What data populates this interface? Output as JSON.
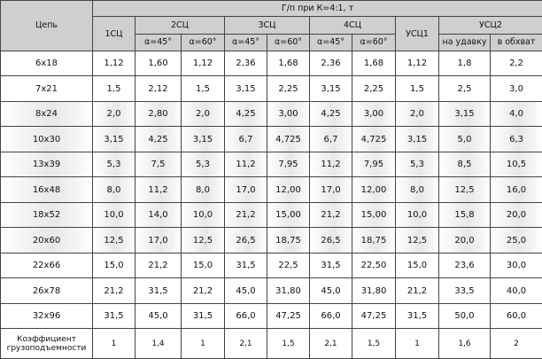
{
  "table": {
    "title": "Г/п при К=4:1, т",
    "chain_header": "Цепь",
    "groups": [
      "1СЦ",
      "2СЦ",
      "3СЦ",
      "4СЦ",
      "УСЦ1",
      "УСЦ2"
    ],
    "angles": [
      "α=45°",
      "α=60°",
      "α=45°",
      "α=60°",
      "α=45°",
      "α=60°"
    ],
    "usc2": [
      "на удавку",
      "в обхват"
    ],
    "rows": [
      [
        "6x18",
        "1,12",
        "1,60",
        "1,12",
        "2,36",
        "1,68",
        "2,36",
        "1,68",
        "1,12",
        "1,8",
        "2,2"
      ],
      [
        "7x21",
        "1,5",
        "2,12",
        "1,5",
        "3,15",
        "2,25",
        "3,15",
        "2,25",
        "1,5",
        "2,5",
        "3,0"
      ],
      [
        "8x24",
        "2,0",
        "2,80",
        "2,0",
        "4,25",
        "3,00",
        "4,25",
        "3,00",
        "2,0",
        "3,15",
        "4,0"
      ],
      [
        "10x30",
        "3,15",
        "4,25",
        "3,15",
        "6,7",
        "4,725",
        "6,7",
        "4,725",
        "3,15",
        "5,0",
        "6,3"
      ],
      [
        "13x39",
        "5,3",
        "7,5",
        "5,3",
        "11,2",
        "7,95",
        "11,2",
        "7,95",
        "5,3",
        "8,5",
        "10,5"
      ],
      [
        "16x48",
        "8,0",
        "11,2",
        "8,0",
        "17,0",
        "12,00",
        "17,0",
        "12,00",
        "8,0",
        "12,5",
        "16,0"
      ],
      [
        "18x52",
        "10,0",
        "14,0",
        "10,0",
        "21,2",
        "15,00",
        "21,2",
        "15,00",
        "10,0",
        "15,8",
        "20,0"
      ],
      [
        "20x60",
        "12,5",
        "17,0",
        "12,5",
        "26,5",
        "18,75",
        "26,5",
        "18,75",
        "12,5",
        "20,0",
        "25,0"
      ],
      [
        "22x66",
        "15,0",
        "21,2",
        "15,0",
        "31,5",
        "22,5",
        "31,5",
        "22,50",
        "15,0",
        "23,6",
        "30,0"
      ],
      [
        "26x78",
        "21,2",
        "31,5",
        "21,2",
        "45,0",
        "31,80",
        "45,0",
        "31,80",
        "21,2",
        "33,5",
        "40,0"
      ],
      [
        "32x96",
        "31,5",
        "45,0",
        "31,5",
        "66,0",
        "47,25",
        "66,0",
        "47,25",
        "31,5",
        "50,0",
        "60,0"
      ]
    ],
    "footer": [
      "Коэффициент грузоподъемности",
      "1",
      "1,4",
      "1",
      "2,1",
      "1,5",
      "2,1",
      "1,5",
      "1",
      "1,6",
      "2"
    ]
  }
}
